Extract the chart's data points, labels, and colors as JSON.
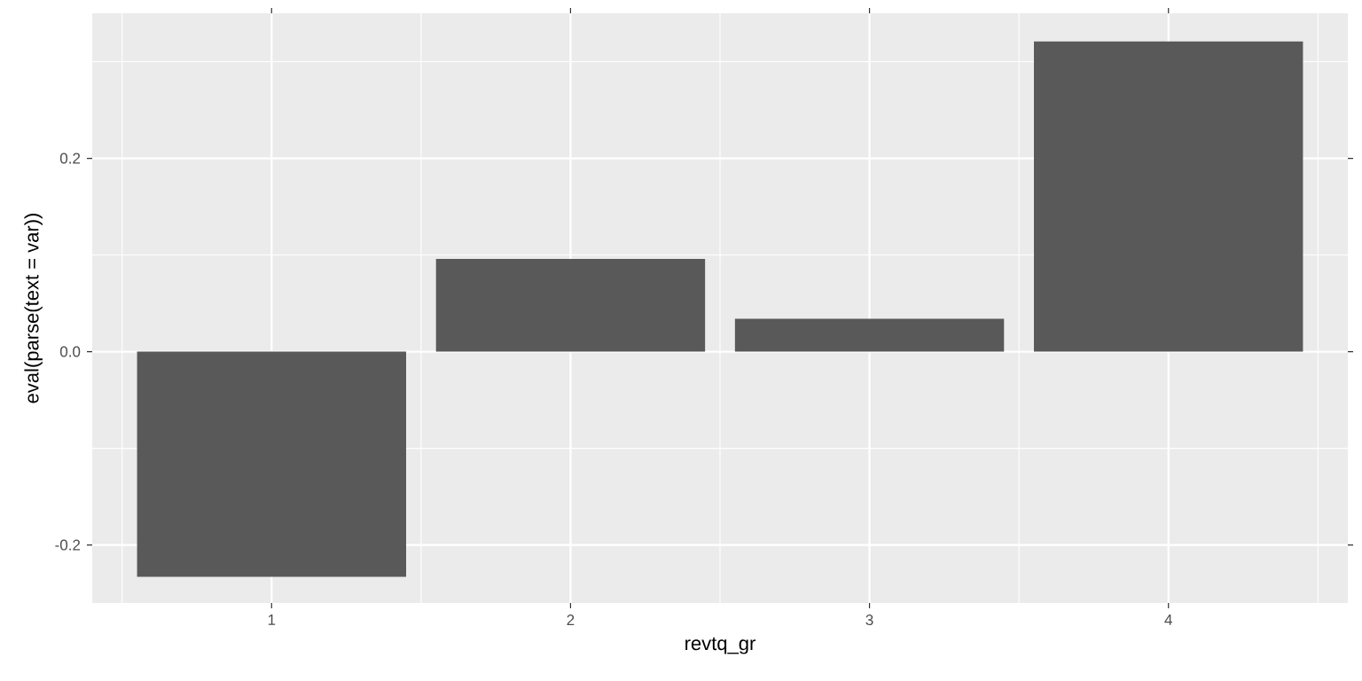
{
  "chart_data": {
    "type": "bar",
    "xlabel": "revtq_gr",
    "ylabel": "eval(parse(text = var))",
    "x": [
      1,
      2,
      3,
      4
    ],
    "values": [
      -0.233,
      0.096,
      0.034,
      0.321
    ],
    "color": "#595959",
    "xlim": [
      0.4,
      4.6
    ],
    "xticks": [
      1,
      2,
      3,
      4
    ],
    "ylim": [
      -0.26,
      0.35
    ],
    "yticks": [
      -0.2,
      {
        "value": 0,
        "label": "0.0"
      },
      0.2
    ],
    "grid": true
  }
}
